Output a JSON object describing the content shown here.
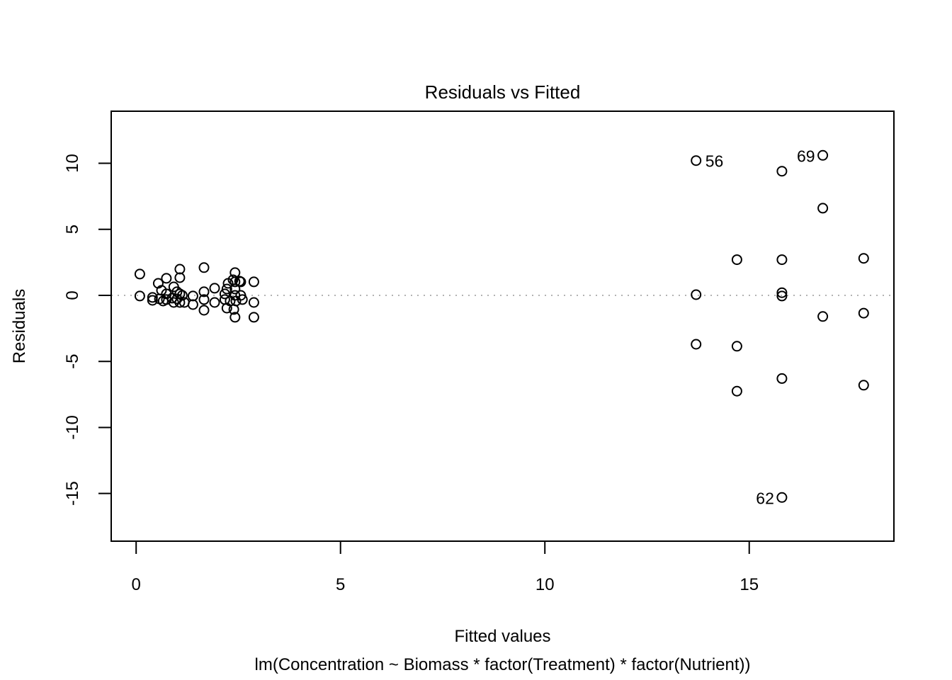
{
  "page": {
    "background": "#ffffff",
    "foreground": "#000000"
  },
  "chart_data": {
    "type": "scatter",
    "title": "Residuals vs Fitted",
    "xlabel": "Fitted values",
    "ylabel": "Residuals",
    "subtitle": "lm(Concentration ~ Biomass * factor(Treatment) * factor(Nutrient))",
    "x_ticks": [
      0,
      5,
      10,
      15
    ],
    "y_ticks": [
      -15,
      -10,
      -5,
      0,
      5,
      10
    ],
    "xlim": [
      -0.61,
      18.54
    ],
    "ylim": [
      -18.61,
      13.94
    ],
    "grid": false,
    "legend": null,
    "frame": true,
    "zero_line": {
      "y": 0,
      "style": "dotted",
      "color": "#b3b3b3"
    },
    "point_style": {
      "shape": "open-circle",
      "color": "#000000"
    },
    "points": [
      [
        0.09,
        1.61
      ],
      [
        0.09,
        -0.05
      ],
      [
        0.4,
        -0.16
      ],
      [
        0.4,
        -0.38
      ],
      [
        0.54,
        0.91
      ],
      [
        0.57,
        -0.27
      ],
      [
        0.62,
        0.38
      ],
      [
        0.66,
        -0.43
      ],
      [
        0.74,
        1.29
      ],
      [
        0.74,
        0.11
      ],
      [
        0.74,
        -0.32
      ],
      [
        0.92,
        0.64
      ],
      [
        0.88,
        -0.21
      ],
      [
        0.92,
        -0.54
      ],
      [
        1.07,
        1.98
      ],
      [
        1.07,
        1.34
      ],
      [
        1.0,
        0.27
      ],
      [
        1.07,
        0.11
      ],
      [
        1.0,
        -0.27
      ],
      [
        1.07,
        -0.54
      ],
      [
        1.13,
        0.0
      ],
      [
        1.18,
        -0.54
      ],
      [
        1.39,
        -0.05
      ],
      [
        1.39,
        -0.7
      ],
      [
        1.66,
        2.1
      ],
      [
        1.66,
        0.27
      ],
      [
        1.66,
        -0.32
      ],
      [
        1.66,
        -1.13
      ],
      [
        1.92,
        0.54
      ],
      [
        1.92,
        -0.54
      ],
      [
        2.22,
        0.48
      ],
      [
        2.25,
        0.91
      ],
      [
        2.42,
        1.72
      ],
      [
        2.37,
        1.18
      ],
      [
        2.53,
        1.07
      ],
      [
        2.42,
        1.02
      ],
      [
        2.56,
        1.02
      ],
      [
        2.42,
        0.48
      ],
      [
        2.17,
        0.11
      ],
      [
        2.42,
        0.0
      ],
      [
        2.56,
        0.0
      ],
      [
        2.17,
        -0.32
      ],
      [
        2.3,
        -0.43
      ],
      [
        2.44,
        -0.43
      ],
      [
        2.6,
        -0.32
      ],
      [
        2.22,
        -0.97
      ],
      [
        2.39,
        -1.07
      ],
      [
        2.42,
        -1.66
      ],
      [
        2.88,
        1.02
      ],
      [
        2.88,
        -0.54
      ],
      [
        2.88,
        -1.66
      ],
      [
        15.8,
        9.4
      ],
      [
        16.8,
        6.6
      ],
      [
        14.7,
        2.7
      ],
      [
        15.8,
        2.7
      ],
      [
        17.8,
        2.8
      ],
      [
        13.7,
        0.05
      ],
      [
        15.8,
        0.2
      ],
      [
        15.8,
        -0.05
      ],
      [
        16.8,
        -1.6
      ],
      [
        17.8,
        -1.35
      ],
      [
        13.7,
        -3.7
      ],
      [
        14.7,
        -3.85
      ],
      [
        15.8,
        -6.3
      ],
      [
        17.8,
        -6.8
      ],
      [
        14.7,
        -7.25
      ]
    ],
    "labeled_points": [
      {
        "label": "56",
        "x": 13.7,
        "y": 10.2,
        "side": "right"
      },
      {
        "label": "69",
        "x": 16.8,
        "y": 10.6,
        "side": "left"
      },
      {
        "label": "62",
        "x": 15.8,
        "y": -15.3,
        "side": "left"
      }
    ]
  }
}
